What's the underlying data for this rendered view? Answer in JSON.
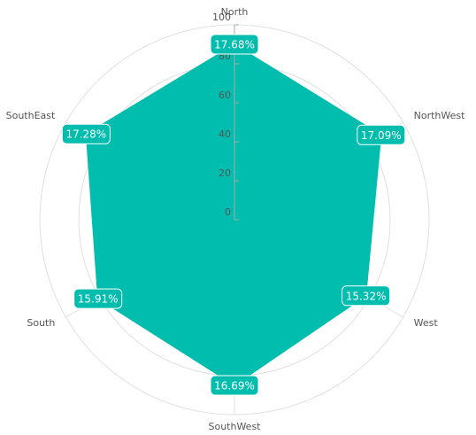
{
  "chart_data": {
    "type": "radar",
    "categories": [
      "North",
      "NorthWest",
      "West",
      "SouthWest",
      "South",
      "SouthEast"
    ],
    "values": [
      90,
      87,
      78,
      85,
      81,
      88
    ],
    "data_labels": [
      "17.68%",
      "17.09%",
      "15.32%",
      "16.69%",
      "15.91%",
      "17.28%"
    ],
    "color": "#00bdae",
    "ylim": [
      0,
      100
    ],
    "yticks": [
      0,
      20,
      40,
      60,
      80,
      100
    ],
    "grid": true
  }
}
